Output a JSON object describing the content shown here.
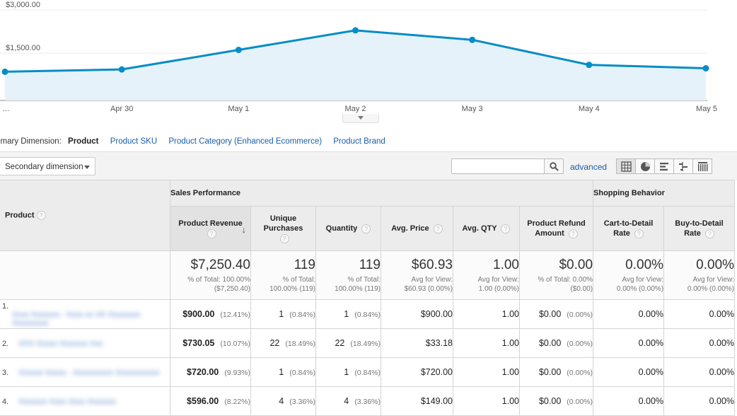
{
  "chart_data": {
    "type": "area",
    "x": [
      "…",
      "Apr 30",
      "May 1",
      "May 2",
      "May 3",
      "May 4",
      "May 5"
    ],
    "values": [
      1000,
      1080,
      1760,
      2440,
      2110,
      1240,
      1120
    ],
    "yticks": [
      {
        "v": 3000,
        "label": "$3,000.00"
      },
      {
        "v": 1500,
        "label": "$1,500.00"
      }
    ],
    "ylim": [
      0,
      3300
    ],
    "color": "#058dc7",
    "fill": "#e6f2fa",
    "grid": true
  },
  "dimensions": {
    "label": "imary Dimension:",
    "active": "Product",
    "links": [
      "Product SKU",
      "Product Category (Enhanced Ecommerce)",
      "Product Brand"
    ]
  },
  "toolbar": {
    "secondary_dimension": "Secondary dimension",
    "search_placeholder": "",
    "advanced": "advanced",
    "views": [
      "table-view-icon",
      "pie-view-icon",
      "bar-view-icon",
      "comparison-view-icon",
      "pivot-view-icon"
    ]
  },
  "table": {
    "group_headers": {
      "sales": "Sales Performance",
      "shopping": "Shopping Behavior"
    },
    "product_header": "Product",
    "columns": [
      {
        "l1": "Product Revenue",
        "l2": ""
      },
      {
        "l1": "Unique",
        "l2": "Purchases"
      },
      {
        "l1": "Quantity",
        "l2": ""
      },
      {
        "l1": "Avg. Price",
        "l2": ""
      },
      {
        "l1": "Avg. QTY",
        "l2": ""
      },
      {
        "l1": "Product Refund",
        "l2": "Amount"
      },
      {
        "l1": "Cart-to-Detail",
        "l2": "Rate"
      },
      {
        "l1": "Buy-to-Detail",
        "l2": "Rate"
      }
    ],
    "totals": [
      {
        "big": "$7,250.40",
        "s1": "% of Total: 100.00%",
        "s2": "($7,250.40)"
      },
      {
        "big": "119",
        "s1": "% of Total:",
        "s2": "100.00% (119)"
      },
      {
        "big": "119",
        "s1": "% of Total:",
        "s2": "100.00% (119)"
      },
      {
        "big": "$60.93",
        "s1": "Avg for View:",
        "s2": "$60.93 (0.00%)"
      },
      {
        "big": "1.00",
        "s1": "Avg for View:",
        "s2": "1.00 (0.00%)"
      },
      {
        "big": "$0.00",
        "s1": "% of Total: 0.00%",
        "s2": "($0.00)"
      },
      {
        "big": "0.00%",
        "s1": "Avg for View:",
        "s2": "0.00% (0.00%)"
      },
      {
        "big": "0.00%",
        "s1": "Avg for View:",
        "s2": "0.00% (0.00%)"
      }
    ],
    "rows": [
      {
        "num": "1.",
        "product": "Xxxx Xxxxxxx - Xxxx xx XX Xxxxxxxx Xxxxxxxxx",
        "revenue": "$900.00",
        "revenue_pct": "(12.41%)",
        "unique": "1",
        "unique_pct": "(0.84%)",
        "qty": "1",
        "qty_pct": "(0.84%)",
        "avg_price": "$900.00",
        "avg_qty": "1.00",
        "refund": "$0.00",
        "refund_pct": "(0.00%)",
        "cart": "0.00%",
        "buy": "0.00%"
      },
      {
        "num": "2.",
        "product": "XXX Xxxxx Xxxxxxx Xxx",
        "revenue": "$730.05",
        "revenue_pct": "(10.07%)",
        "unique": "22",
        "unique_pct": "(18.49%)",
        "qty": "22",
        "qty_pct": "(18.49%)",
        "avg_price": "$33.18",
        "avg_qty": "1.00",
        "refund": "$0.00",
        "refund_pct": "(0.00%)",
        "cart": "0.00%",
        "buy": "0.00%"
      },
      {
        "num": "3.",
        "product": "Xxxxxx Xxxxx - Xxxxxxxxxx Xxxxxxxxxxx",
        "revenue": "$720.00",
        "revenue_pct": "(9.93%)",
        "unique": "1",
        "unique_pct": "(0.84%)",
        "qty": "1",
        "qty_pct": "(0.84%)",
        "avg_price": "$720.00",
        "avg_qty": "1.00",
        "refund": "$0.00",
        "refund_pct": "(0.00%)",
        "cart": "0.00%",
        "buy": "0.00%"
      },
      {
        "num": "4.",
        "product": "Xxxxxxx Xxxx Xxxx Xxxxxxx",
        "revenue": "$596.00",
        "revenue_pct": "(8.22%)",
        "unique": "4",
        "unique_pct": "(3.36%)",
        "qty": "4",
        "qty_pct": "(3.36%)",
        "avg_price": "$149.00",
        "avg_qty": "1.00",
        "refund": "$0.00",
        "refund_pct": "(0.00%)",
        "cart": "0.00%",
        "buy": "0.00%"
      }
    ]
  }
}
